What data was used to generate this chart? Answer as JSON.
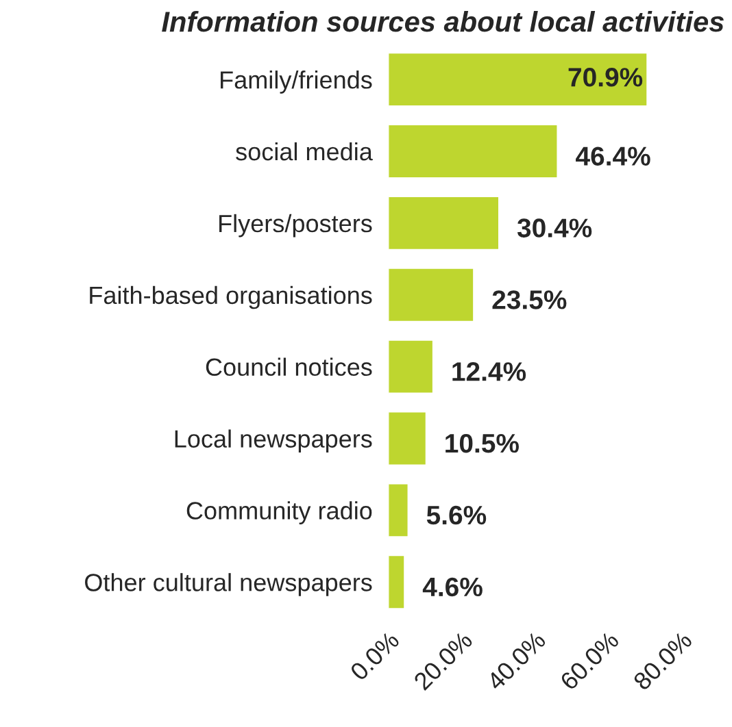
{
  "chart_data": {
    "type": "bar",
    "orientation": "horizontal",
    "title": "Information sources about local activities",
    "categories": [
      "Family/friends",
      "social media",
      "Flyers/posters",
      "Faith-based organisations",
      "Council notices",
      "Local newspapers",
      "Community radio",
      "Other cultural newspapers"
    ],
    "values": [
      70.9,
      46.4,
      30.4,
      23.5,
      12.4,
      10.5,
      5.6,
      4.6
    ],
    "value_labels": [
      "70.9%",
      "46.4%",
      "30.4%",
      "23.5%",
      "12.4%",
      "10.5%",
      "5.6%",
      "4.6%"
    ],
    "color": "#bed62f",
    "xlim": [
      0,
      80
    ],
    "xticks": [
      {
        "value": 0,
        "label": "0.0%"
      },
      {
        "value": 20,
        "label": "20.0%"
      },
      {
        "value": 40,
        "label": "40.0%"
      },
      {
        "value": 60,
        "label": "60.0%"
      },
      {
        "value": 80,
        "label": "80.0%"
      }
    ],
    "grid": false,
    "legend": false
  }
}
